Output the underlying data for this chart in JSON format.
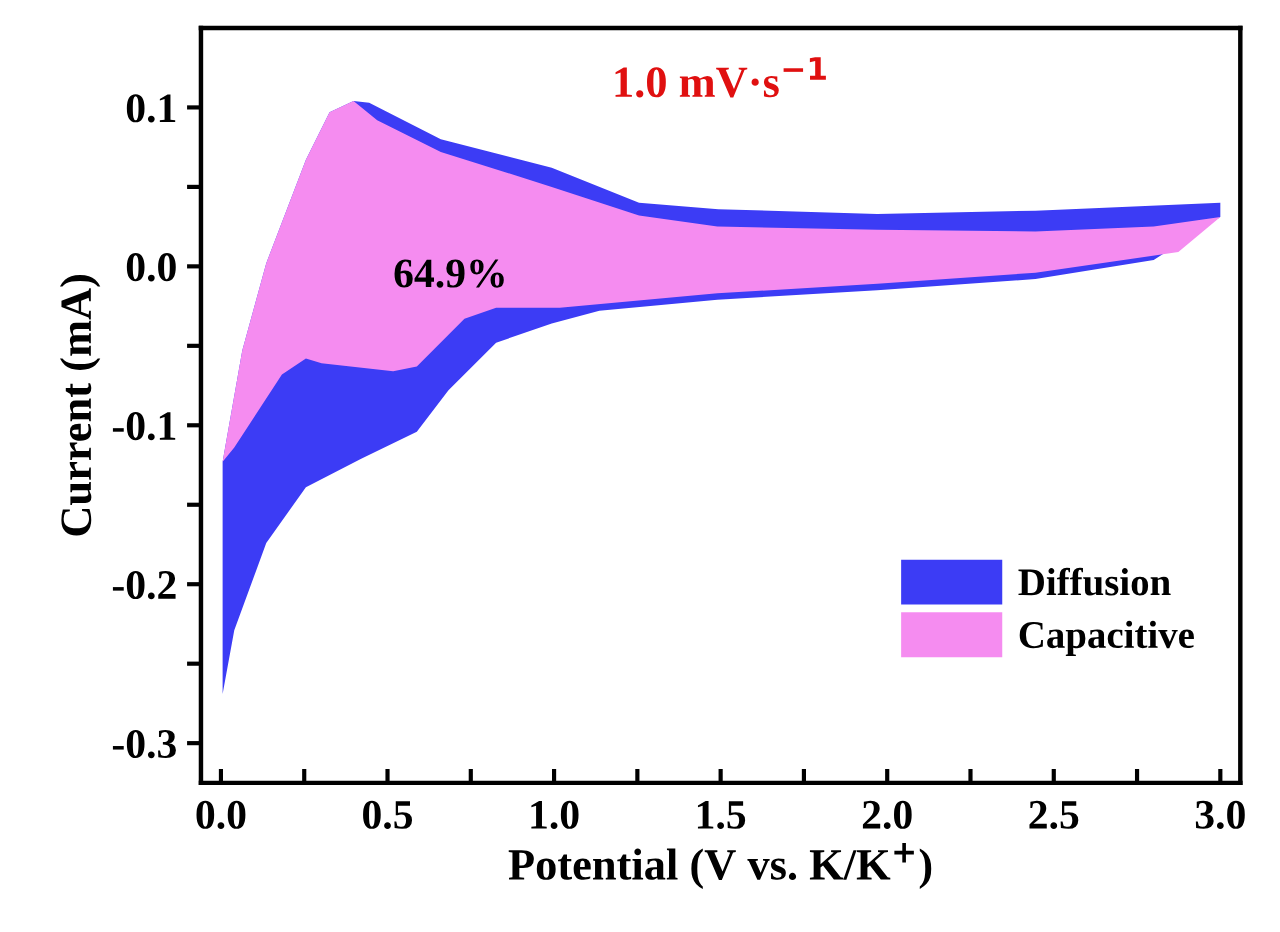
{
  "chart_data": {
    "type": "area",
    "title": "1.0 mV·s$^{−1}$",
    "xlabel": "Potential (V vs. K/K$^{+}$)",
    "ylabel": "Current (mA)",
    "annotations": [
      "64.9%"
    ],
    "series": [
      {
        "name": "Diffusion",
        "color": "#3c3cf5",
        "x": [
          0.005,
          0.064,
          0.136,
          0.255,
          0.326,
          0.398,
          0.445,
          0.66,
          0.993,
          1.255,
          1.493,
          1.97,
          2.445,
          3.0,
          3.0,
          2.8,
          2.445,
          1.97,
          1.49,
          1.136,
          0.993,
          0.826,
          0.683,
          0.588,
          0.421,
          0.255,
          0.136,
          0.04,
          0.005
        ],
        "values": [
          -0.123,
          -0.053,
          0.002,
          0.067,
          0.097,
          0.104,
          0.103,
          0.08,
          0.062,
          0.04,
          0.036,
          0.033,
          0.035,
          0.04,
          0.031,
          0.004,
          -0.008,
          -0.015,
          -0.021,
          -0.028,
          -0.036,
          -0.048,
          -0.078,
          -0.104,
          -0.121,
          -0.139,
          -0.174,
          -0.229,
          -0.269
        ]
      },
      {
        "name": "Capacitive",
        "color": "#f58cf0",
        "x": [
          0.005,
          0.064,
          0.136,
          0.255,
          0.326,
          0.398,
          0.469,
          0.66,
          0.993,
          1.255,
          1.49,
          1.97,
          2.445,
          2.8,
          3.0,
          2.874,
          2.445,
          1.97,
          1.49,
          1.017,
          0.826,
          0.731,
          0.588,
          0.517,
          0.302,
          0.255,
          0.183,
          0.04
        ],
        "values": [
          -0.123,
          -0.053,
          0.002,
          0.067,
          0.097,
          0.104,
          0.092,
          0.072,
          0.05,
          0.032,
          0.025,
          0.023,
          0.022,
          0.025,
          0.031,
          0.009,
          -0.004,
          -0.011,
          -0.017,
          -0.026,
          -0.026,
          -0.033,
          -0.063,
          -0.066,
          -0.061,
          -0.058,
          -0.068,
          -0.114
        ]
      }
    ],
    "xlim": [
      -0.06,
      3.06
    ],
    "ylim": [
      -0.325,
      0.15
    ],
    "xticks": [
      {
        "value": 0,
        "label": "0.0"
      },
      {
        "value": 0.25,
        "label": null
      },
      0.5,
      {
        "value": 0.75,
        "label": null
      },
      {
        "value": 1,
        "label": "1.0"
      },
      {
        "value": 1.25,
        "label": null
      },
      1.5,
      {
        "value": 1.75,
        "label": null
      },
      {
        "value": 2,
        "label": "2.0"
      },
      {
        "value": 2.25,
        "label": null
      },
      2.5,
      {
        "value": 2.75,
        "label": null
      },
      {
        "value": 3,
        "label": "3.0"
      }
    ],
    "yticks": [
      -0.3,
      {
        "value": -0.25,
        "label": null
      },
      -0.2,
      {
        "value": -0.15,
        "label": null
      },
      -0.1,
      {
        "value": -0.05,
        "label": null
      },
      {
        "value": 0,
        "label": "0.0"
      },
      {
        "value": 0.05,
        "label": null
      },
      0.1
    ],
    "legend": "bottom right",
    "grid": false
  }
}
